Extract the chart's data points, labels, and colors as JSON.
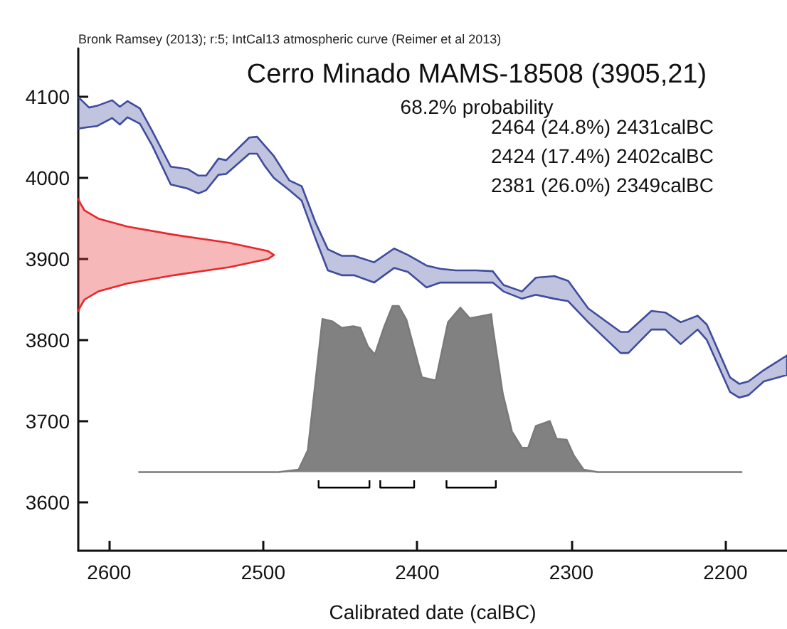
{
  "chart_data": {
    "type": "area",
    "title": "Cerro Minado MAMS-18508 (3905,21)",
    "subtitle": "68.2% probability",
    "xlabel": "Calibrated date (calBC)",
    "annotations": [
      "Bronk Ramsey (2013); r:5; IntCal13 atmospheric curve (Reimer et al 2013)",
      "2464 (24.8%) 2431calBC",
      "2424 (17.4%) 2402calBC",
      "2381 (26.0%) 2349calBC"
    ],
    "xlim": [
      2620,
      2160
    ],
    "xticks": [
      2600,
      2500,
      2400,
      2300,
      2200
    ],
    "ylim": [
      3540,
      4160
    ],
    "yticks": [
      3600,
      3700,
      3800,
      3900,
      4000,
      4100
    ],
    "grid": false,
    "series": [
      {
        "color": "#3f4b9e",
        "x": [
          2620,
          2613,
          2608,
          2598,
          2593,
          2588,
          2580,
          2572,
          2560,
          2549,
          2542,
          2537,
          2529,
          2524,
          2509,
          2504,
          2499,
          2493,
          2483,
          2475,
          2466,
          2458,
          2449,
          2441,
          2428,
          2415,
          2406,
          2394,
          2385,
          2375,
          2362,
          2351,
          2344,
          2332,
          2323,
          2311,
          2302,
          2289,
          2268,
          2263,
          2248,
          2239,
          2229,
          2218,
          2212,
          2197,
          2191,
          2185,
          2175,
          2160,
          2160,
          2175,
          2185,
          2191,
          2197,
          2212,
          2218,
          2229,
          2239,
          2248,
          2263,
          2268,
          2289,
          2302,
          2311,
          2323,
          2332,
          2344,
          2351,
          2362,
          2375,
          2385,
          2394,
          2406,
          2415,
          2428,
          2441,
          2449,
          2458,
          2466,
          2475,
          2483,
          2493,
          2499,
          2504,
          2509,
          2524,
          2529,
          2537,
          2542,
          2549,
          2560,
          2572,
          2580,
          2588,
          2593,
          2598,
          2608,
          2613,
          2620
        ],
        "values": [
          4100,
          4087,
          4089,
          4096,
          4088,
          4095,
          4086,
          4058,
          4014,
          4011,
          4003,
          4003,
          4024,
          4022,
          4050,
          4051,
          4040,
          4027,
          3997,
          3990,
          3945,
          3912,
          3904,
          3904,
          3896,
          3913,
          3905,
          3892,
          3888,
          3886,
          3886,
          3885,
          3868,
          3860,
          3877,
          3879,
          3873,
          3839,
          3810,
          3810,
          3836,
          3834,
          3822,
          3830,
          3819,
          3754,
          3746,
          3749,
          3763,
          3781,
          3757,
          3749,
          3732,
          3729,
          3736,
          3800,
          3813,
          3795,
          3813,
          3813,
          3784,
          3784,
          3822,
          3848,
          3851,
          3856,
          3851,
          3860,
          3871,
          3871,
          3871,
          3871,
          3865,
          3884,
          3889,
          3871,
          3880,
          3880,
          3886,
          3925,
          3972,
          3985,
          4000,
          4015,
          4030,
          4030,
          4005,
          4004,
          3985,
          3981,
          3987,
          3992,
          4040,
          4067,
          4075,
          4066,
          4074,
          4064,
          4063,
          4061
        ]
      },
      {
        "color": "#e8272a",
        "x": [
          2620,
          2619,
          2616,
          2607,
          2588,
          2558,
          2522,
          2497,
          2493,
          2497,
          2522,
          2558,
          2588,
          2607,
          2616,
          2619,
          2620
        ],
        "values": [
          3835,
          3840,
          3850,
          3860,
          3870,
          3880,
          3890,
          3900,
          3905,
          3910,
          3920,
          3930,
          3940,
          3950,
          3960,
          3970,
          3975
        ]
      },
      {
        "color": "#7a7a7a",
        "x": [
          2581,
          2490,
          2477,
          2471,
          2461.5,
          2455,
          2449,
          2441.5,
          2437,
          2432,
          2427.5,
          2421.5,
          2416,
          2412,
          2407,
          2397,
          2388,
          2380,
          2372,
          2366,
          2360,
          2352,
          2351,
          2344.5,
          2338.5,
          2332,
          2328,
          2323,
          2314,
          2309.5,
          2303,
          2298.5,
          2292,
          2283,
          2189
        ],
        "values": [
          3637,
          3637,
          3640,
          3664,
          3826,
          3823,
          3815,
          3817,
          3815,
          3792,
          3782,
          3816,
          3842,
          3842,
          3825,
          3754,
          3750,
          3822,
          3840,
          3827,
          3829,
          3832,
          3816,
          3734,
          3687,
          3667,
          3667,
          3694,
          3700,
          3678,
          3677,
          3658,
          3640,
          3637,
          3637
        ]
      },
      {
        "type": "line",
        "color": "#000000",
        "x": [
          2464,
          2464,
          2431,
          2431,
          2428,
          2424,
          2424,
          2402,
          2402,
          2390,
          2381,
          2381,
          2349,
          2349
        ],
        "values": [
          3627,
          3618,
          3618,
          3627,
          null,
          3627,
          3618,
          3618,
          3627,
          null,
          3627,
          3618,
          3618,
          3627
        ]
      }
    ]
  }
}
